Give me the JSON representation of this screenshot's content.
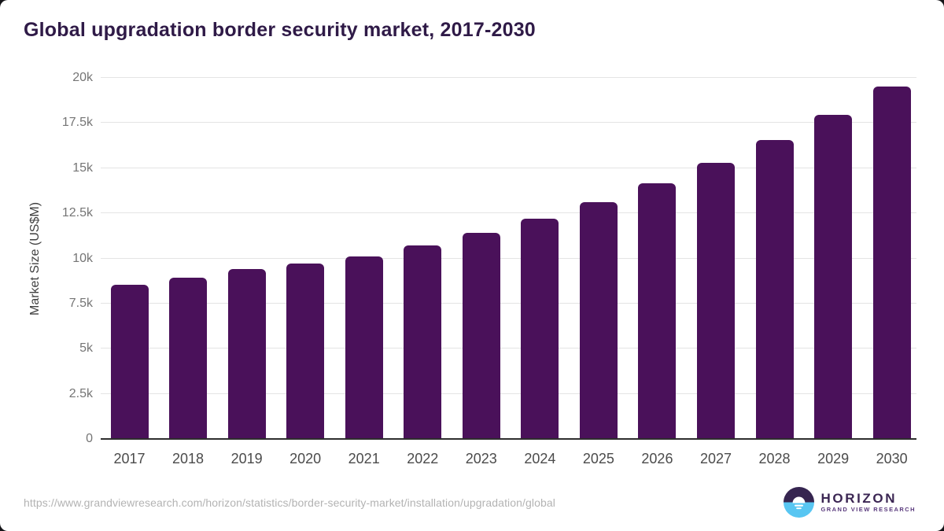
{
  "page": {
    "title": "Global upgradation border security market, 2017-2030",
    "source_url": "https://www.grandviewresearch.com/horizon/statistics/border-security-market/installation/upgradation/global"
  },
  "logo": {
    "brand": "HORIZON",
    "subbrand": "GRAND VIEW RESEARCH",
    "mark": "horizon-sun-circle-icon",
    "mark_top_color": "#362550",
    "mark_bottom_color": "#58c6f2"
  },
  "colors": {
    "background": "#ffffff",
    "bar": "#4a115a",
    "title_text": "#2f1a47",
    "axis_line": "#2e2e2e",
    "gridline": "#e4e4e4",
    "y_tick_text": "#757575",
    "x_tick_text": "#4b4b4b",
    "y_axis_title_text": "#3f3f3f",
    "url_text": "#b3b3b3"
  },
  "chart_data": {
    "type": "bar",
    "title": "Global upgradation border security market, 2017-2030",
    "categories": [
      "2017",
      "2018",
      "2019",
      "2020",
      "2021",
      "2022",
      "2023",
      "2024",
      "2025",
      "2026",
      "2027",
      "2028",
      "2029",
      "2030"
    ],
    "values": [
      8550,
      8950,
      9400,
      9700,
      10100,
      10700,
      11400,
      12200,
      13100,
      14150,
      15300,
      16550,
      17950,
      19500
    ],
    "xlabel": "",
    "ylabel": "Market Size (US$M)",
    "ylim": [
      0,
      20000
    ],
    "yticks": [
      0,
      2500,
      5000,
      7500,
      10000,
      12500,
      15000,
      17500,
      20000
    ],
    "ytick_labels": [
      "0",
      "2.5k",
      "5k",
      "7.5k",
      "10k",
      "12.5k",
      "15k",
      "17.5k",
      "20k"
    ],
    "grid": "horizontal",
    "legend": "none",
    "bar_color": "#4a115a"
  }
}
